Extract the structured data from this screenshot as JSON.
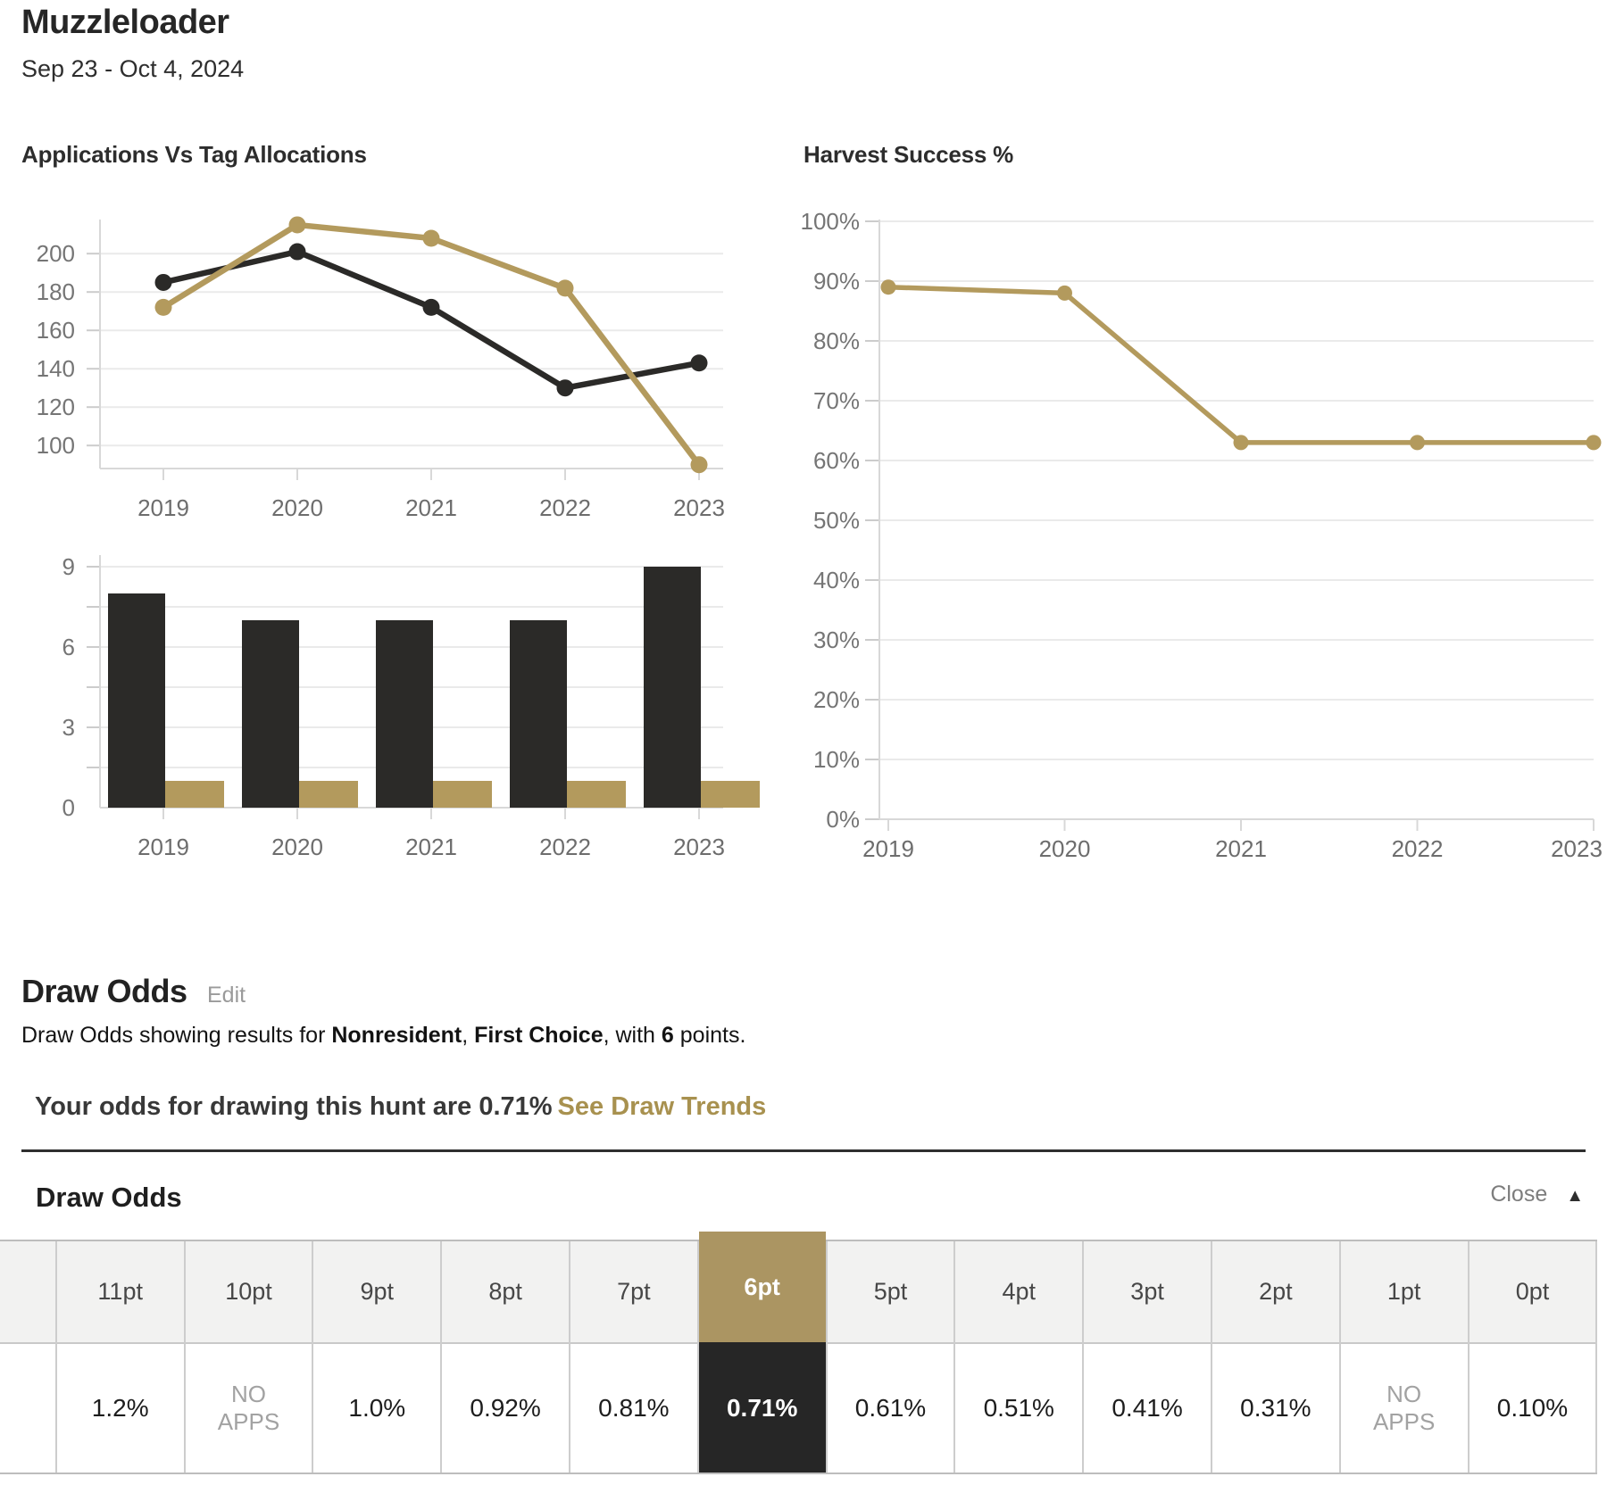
{
  "header": {
    "title": "Muzzleloader",
    "date_range": "Sep 23 - Oct 4, 2024"
  },
  "colors": {
    "gold": "#b39a5d",
    "dark": "#2b2a28",
    "gold_header": "#ab9562",
    "dark_cell": "#262626",
    "link_gold": "#a8914f"
  },
  "chart_data": [
    {
      "id": "applications-vs-tags-lines",
      "type": "line",
      "title": "Applications Vs Tag Allocations",
      "categories": [
        "2019",
        "2020",
        "2021",
        "2022",
        "2023"
      ],
      "series": [
        {
          "name": "dark-series",
          "color": "#2b2a28",
          "values": [
            185,
            201,
            172,
            130,
            143
          ]
        },
        {
          "name": "gold-series",
          "color": "#b39a5d",
          "values": [
            172,
            215,
            208,
            182,
            90
          ]
        }
      ],
      "ylim": [
        88,
        218
      ],
      "yticks": [
        100,
        120,
        140,
        160,
        180,
        200
      ],
      "grid": true,
      "legend": "none"
    },
    {
      "id": "applications-vs-tags-bars",
      "type": "bar",
      "title": "",
      "categories": [
        "2019",
        "2020",
        "2021",
        "2022",
        "2023"
      ],
      "series": [
        {
          "name": "dark-series",
          "color": "#2b2a28",
          "values": [
            8,
            7,
            7,
            7,
            9
          ]
        },
        {
          "name": "gold-series",
          "color": "#b39a5d",
          "values": [
            1,
            1,
            1,
            1,
            1
          ]
        }
      ],
      "ylim": [
        0,
        9
      ],
      "yticks": [
        0,
        3,
        6,
        9
      ],
      "grid": true,
      "legend": "none"
    },
    {
      "id": "harvest-success",
      "type": "line",
      "title": "Harvest Success %",
      "categories": [
        "2019",
        "2020",
        "2021",
        "2022",
        "2023"
      ],
      "series": [
        {
          "name": "gold-series",
          "color": "#b39a5d",
          "values": [
            89,
            88,
            63,
            63,
            63
          ]
        }
      ],
      "ylim": [
        0,
        100
      ],
      "yticks": [
        0,
        10,
        20,
        30,
        40,
        50,
        60,
        70,
        80,
        90,
        100
      ],
      "tick_suffix": "%",
      "grid": true,
      "legend": "none"
    }
  ],
  "draw_odds": {
    "heading": "Draw Odds",
    "edit_label": "Edit",
    "desc": {
      "pre": "Draw Odds showing results for ",
      "residency": "Nonresident",
      "s1": ", ",
      "choice": "First Choice",
      "s2": ", with ",
      "points": "6",
      "post": " points."
    },
    "summary": {
      "prefix": "Your odds for drawing this hunt are ",
      "value": "0.71%",
      "link": "See Draw Trends"
    },
    "table": {
      "heading": "Draw Odds",
      "close_label": "Close",
      "close_icon": "collapse-arrow-up",
      "columns": [
        {
          "label": "",
          "value": "",
          "clipped": true
        },
        {
          "label": "11pt",
          "value": "1.2%"
        },
        {
          "label": "10pt",
          "value": "NO APPS"
        },
        {
          "label": "9pt",
          "value": "1.0%"
        },
        {
          "label": "8pt",
          "value": "0.92%"
        },
        {
          "label": "7pt",
          "value": "0.81%"
        },
        {
          "label": "6pt",
          "value": "0.71%",
          "highlight": true
        },
        {
          "label": "5pt",
          "value": "0.61%"
        },
        {
          "label": "4pt",
          "value": "0.51%"
        },
        {
          "label": "3pt",
          "value": "0.41%"
        },
        {
          "label": "2pt",
          "value": "0.31%"
        },
        {
          "label": "1pt",
          "value": "NO APPS"
        },
        {
          "label": "0pt",
          "value": "0.10%"
        }
      ]
    }
  }
}
